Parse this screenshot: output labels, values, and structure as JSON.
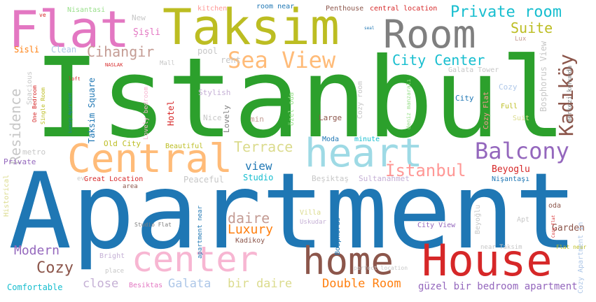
{
  "words": [
    {
      "text": "Apartment",
      "color": "#1f77b4"
    },
    {
      "text": "Istanbul",
      "color": "#2ca02c"
    },
    {
      "text": "Taksim",
      "color": "#bcbd22"
    },
    {
      "text": "Flat",
      "color": "#e377c2"
    },
    {
      "text": "Room",
      "color": "#7f7f7f"
    },
    {
      "text": "House",
      "color": "#d62728"
    },
    {
      "text": "home",
      "color": "#8c564b"
    },
    {
      "text": "center",
      "color": "#f7b6d2"
    },
    {
      "text": "Central",
      "color": "#ffbb78"
    },
    {
      "text": "heart",
      "color": "#9edae5"
    },
    {
      "text": "Sea View",
      "color": "#ffbb78"
    },
    {
      "text": "Balcony",
      "color": "#9467bd"
    },
    {
      "text": "Private room",
      "color": "#17becf"
    },
    {
      "text": "Suite",
      "color": "#bcbd22"
    },
    {
      "text": "City Center",
      "color": "#17becf"
    },
    {
      "text": "Kadıköy",
      "color": "#8c564b"
    },
    {
      "text": "Cihangir",
      "color": "#c49c94"
    },
    {
      "text": "Terrace",
      "color": "#dbdb8d"
    },
    {
      "text": "İstanbul",
      "color": "#ff9896"
    },
    {
      "text": "view",
      "color": "#1f77b4"
    },
    {
      "text": "Residence",
      "color": "#c7c7c7"
    },
    {
      "text": "Modern",
      "color": "#9467bd"
    },
    {
      "text": "Cozy",
      "color": "#8c564b"
    },
    {
      "text": "daire",
      "color": "#c49c94"
    },
    {
      "text": "Luxury",
      "color": "#ff7f0e"
    },
    {
      "text": "Galata",
      "color": "#aec7e8"
    },
    {
      "text": "bir daire",
      "color": "#dbdb8d"
    },
    {
      "text": "Double Room",
      "color": "#ff7f0e"
    },
    {
      "text": "close",
      "color": "#c5b0d5"
    },
    {
      "text": "Comfortable",
      "color": "#17becf"
    },
    {
      "text": "Beşiktaş",
      "color": "#c7c7c7"
    },
    {
      "text": "Sultanahmet",
      "color": "#c5b0d5"
    },
    {
      "text": "Beyoglu",
      "color": "#d62728"
    },
    {
      "text": "Nişantaşı",
      "color": "#1f77b4"
    },
    {
      "text": "Studio",
      "color": "#17becf"
    },
    {
      "text": "Peaceful",
      "color": "#c7c7c7"
    },
    {
      "text": "Garden",
      "color": "#8c564b"
    },
    {
      "text": "Bosphorus View",
      "color": "#c7c7c7"
    },
    {
      "text": "Şişli",
      "color": "#e377c2"
    },
    {
      "text": "Sisli",
      "color": "#ff7f0e"
    },
    {
      "text": "Clean",
      "color": "#aec7e8"
    },
    {
      "text": "pool",
      "color": "#c7c7c7"
    },
    {
      "text": "rent",
      "color": "#c7c7c7"
    },
    {
      "text": "Galata Tower",
      "color": "#c7c7c7"
    },
    {
      "text": "Lux",
      "color": "#c49c94"
    },
    {
      "text": "Cozy",
      "color": "#aec7e8"
    },
    {
      "text": "City",
      "color": "#1f77b4"
    },
    {
      "text": "Full",
      "color": "#bcbd22"
    },
    {
      "text": "Suit",
      "color": "#dbdb8d"
    },
    {
      "text": "Stylish",
      "color": "#c5b0d5"
    },
    {
      "text": "Nice",
      "color": "#c7c7c7"
    },
    {
      "text": "min",
      "color": "#c49c94"
    },
    {
      "text": "Large",
      "color": "#8c564b"
    },
    {
      "text": "Hotel",
      "color": "#d62728"
    },
    {
      "text": "Lovely",
      "color": "#7f7f7f"
    },
    {
      "text": "Beautiful",
      "color": "#bcbd22"
    },
    {
      "text": "Old City",
      "color": "#bcbd22"
    },
    {
      "text": "Private",
      "color": "#9467bd"
    },
    {
      "text": "metro",
      "color": "#c7c7c7"
    },
    {
      "text": "Moda",
      "color": "#1f77b4"
    },
    {
      "text": "minute",
      "color": "#17becf"
    },
    {
      "text": "Taksim Square",
      "color": "#1f77b4"
    },
    {
      "text": "Nisantasi",
      "color": "#98df8a"
    },
    {
      "text": "New",
      "color": "#c7c7c7"
    },
    {
      "text": "kitchen",
      "color": "#ff9896"
    },
    {
      "text": "room near",
      "color": "#1f77b4"
    },
    {
      "text": "Penthouse",
      "color": "#8c564b"
    },
    {
      "text": "central location",
      "color": "#d62728"
    },
    {
      "text": "Mall",
      "color": "#c7c7c7"
    },
    {
      "text": "Villa",
      "color": "#dbdb8d"
    },
    {
      "text": "Uskudar",
      "color": "#c5b0d5"
    },
    {
      "text": "City View",
      "color": "#9467bd"
    },
    {
      "text": "Apt",
      "color": "#c7c7c7"
    },
    {
      "text": "oda",
      "color": "#8c564b"
    },
    {
      "text": "Bright",
      "color": "#c5b0d5"
    },
    {
      "text": "place",
      "color": "#c7c7c7"
    },
    {
      "text": "Besiktas",
      "color": "#e377c2"
    },
    {
      "text": "Kadikoy",
      "color": "#8c564b"
    },
    {
      "text": "Great Location",
      "color": "#d62728"
    },
    {
      "text": "area",
      "color": "#8c564b"
    },
    {
      "text": "Historical",
      "color": "#dbdb8d"
    },
    {
      "text": "ev",
      "color": "#c7c7c7"
    },
    {
      "text": "Studio Flat",
      "color": "#7f7f7f"
    },
    {
      "text": "apartment near",
      "color": "#1f77b4"
    },
    {
      "text": "perfect location",
      "color": "#c7c7c7"
    },
    {
      "text": "near Taksim",
      "color": "#c7c7c7"
    },
    {
      "text": "Flat near",
      "color": "#bcbd22"
    },
    {
      "text": "güzel bir bedroom apartment",
      "color": "#9467bd"
    },
    {
      "text": "Cozy Apartment in",
      "color": "#aec7e8"
    },
    {
      "text": "Bosphorus",
      "color": "#1f77b4"
    },
    {
      "text": "Beyoğlu",
      "color": "#c7c7c7"
    },
    {
      "text": "Cozy Flat",
      "color": "#ff9896"
    },
    {
      "text": "One Bedroom",
      "color": "#d62728"
    },
    {
      "text": "Single Room",
      "color": "#bcbd22"
    },
    {
      "text": "Spacious",
      "color": "#c7c7c7"
    },
    {
      "text": "özel oda",
      "color": "#98df8a"
    },
    {
      "text": "Cozy room",
      "color": "#c7c7c7"
    },
    {
      "text": "merkezi konumda",
      "color": "#7f7f7f"
    },
    {
      "text": "deniz manzaralı",
      "color": "#98df8a"
    },
    {
      "text": "Lovely bedroom",
      "color": "#f7b6d2"
    },
    {
      "text": "NASLAK",
      "color": "#d62728"
    },
    {
      "text": "ve",
      "color": "#d62728"
    },
    {
      "text": "loft",
      "color": "#d62728"
    },
    {
      "text": "Luxury Apartment",
      "color": "#1f77b4"
    },
    {
      "text": "Cozy Flat",
      "color": "#d62728"
    },
    {
      "text": "seal",
      "color": "#1f77b4"
    }
  ]
}
